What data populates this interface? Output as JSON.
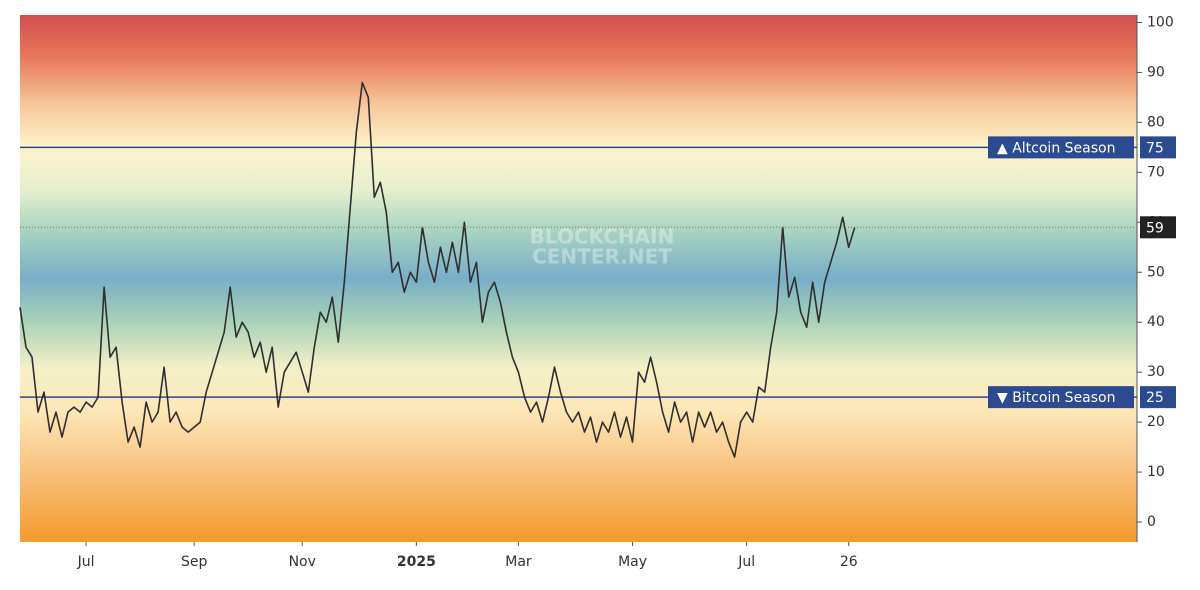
{
  "chart_data": {
    "type": "line",
    "watermark": [
      "BLOCKCHAIN",
      "CENTER.NET"
    ],
    "series": [
      {
        "color": "#2f2f2f",
        "values": [
          43,
          35,
          33,
          22,
          26,
          18,
          22,
          17,
          22,
          23,
          22,
          24,
          23,
          25,
          47,
          33,
          35,
          24,
          16,
          19,
          15,
          24,
          20,
          22,
          31,
          20,
          22,
          19,
          18,
          19,
          20,
          26,
          30,
          34,
          38,
          47,
          37,
          40,
          38,
          33,
          36,
          30,
          35,
          23,
          30,
          32,
          34,
          30,
          26,
          35,
          42,
          40,
          45,
          36,
          48,
          63,
          78,
          88,
          85,
          65,
          68,
          62,
          50,
          52,
          46,
          50,
          48,
          59,
          52,
          48,
          55,
          50,
          56,
          50,
          60,
          48,
          52,
          40,
          46,
          48,
          44,
          38,
          33,
          30,
          25,
          22,
          24,
          20,
          25,
          31,
          26,
          22,
          20,
          22,
          18,
          21,
          16,
          20,
          18,
          22,
          17,
          21,
          16,
          30,
          28,
          33,
          28,
          22,
          18,
          24,
          20,
          22,
          16,
          22,
          19,
          22,
          18,
          20,
          16,
          13,
          20,
          22,
          20,
          27,
          26,
          35,
          42,
          59,
          45,
          49,
          42,
          39,
          48,
          40,
          48,
          52,
          56,
          61,
          55,
          59
        ]
      }
    ],
    "xlim": [
      0,
      186
    ],
    "xticks": [
      {
        "value": 11,
        "label": "Jul"
      },
      {
        "value": 29,
        "label": "Sep"
      },
      {
        "value": 47,
        "label": "Nov"
      },
      {
        "value": 66,
        "label": "2025"
      },
      {
        "value": 83,
        "label": "Mar"
      },
      {
        "value": 102,
        "label": "May"
      },
      {
        "value": 121,
        "label": "Jul"
      },
      {
        "value": 138,
        "label": "26"
      }
    ],
    "ylim": [
      -4,
      101.5
    ],
    "yticks": [
      0,
      10,
      20,
      30,
      40,
      50,
      60,
      70,
      80,
      90,
      100
    ],
    "reference_lines": [
      {
        "value": 75,
        "label": "▲ Altcoin Season",
        "color": "#2c4a8f"
      },
      {
        "value": 25,
        "label": "▼ Bitcoin Season",
        "color": "#2c4a8f"
      }
    ]
  }
}
